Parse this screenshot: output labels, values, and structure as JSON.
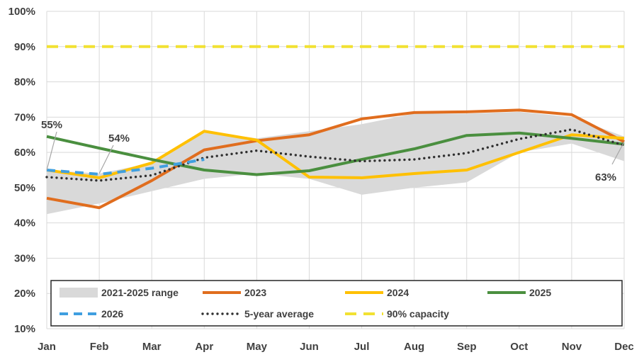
{
  "chart_data": {
    "type": "line",
    "title": "",
    "xlabel": "",
    "ylabel": "",
    "categories": [
      "Jan",
      "Feb",
      "Mar",
      "Apr",
      "May",
      "Jun",
      "Jul",
      "Aug",
      "Sep",
      "Oct",
      "Nov",
      "Dec"
    ],
    "ylim": [
      10,
      100
    ],
    "yticks": [
      10,
      20,
      30,
      40,
      50,
      60,
      70,
      80,
      90,
      100
    ],
    "ytick_labels": [
      "10%",
      "20%",
      "30%",
      "40%",
      "50%",
      "60%",
      "70%",
      "80%",
      "90%",
      "100%"
    ],
    "grid": true,
    "legend_position": "bottom",
    "range": {
      "name": "2021-2025 range",
      "color": "#d9d9d9",
      "min": [
        42.5,
        45.5,
        49,
        52.5,
        54,
        52.5,
        48,
        50,
        51.5,
        60,
        62.5,
        57.5
      ],
      "max": [
        55,
        54,
        57,
        66,
        64,
        66,
        68,
        71,
        71,
        71.5,
        70,
        64.5
      ]
    },
    "series": [
      {
        "name": "2023",
        "color": "#e06d1e",
        "style": "solid",
        "values": [
          47,
          44.3,
          52,
          60.7,
          63.3,
          65,
          69.5,
          71.3,
          71.5,
          72,
          70.7,
          63
        ]
      },
      {
        "name": "2024",
        "color": "#ffc000",
        "style": "solid",
        "values": [
          55,
          52.8,
          57,
          66,
          63.5,
          53,
          52.8,
          54,
          55,
          60,
          65,
          64
        ]
      },
      {
        "name": "2025",
        "color": "#4a8f3f",
        "style": "solid",
        "values": [
          64.5,
          61.2,
          58,
          55,
          53.7,
          54.8,
          58,
          61,
          64.8,
          65.5,
          64,
          62.3
        ]
      },
      {
        "name": "2026",
        "color": "#3f9fe0",
        "style": "dashed",
        "values": [
          55,
          53.8,
          55.5,
          58,
          null,
          null,
          null,
          null,
          null,
          null,
          null,
          null
        ]
      },
      {
        "name": "5-year average",
        "color": "#303030",
        "style": "dotted",
        "values": [
          53,
          52,
          53.5,
          58.5,
          60.5,
          58.8,
          57.5,
          58,
          59.8,
          63.8,
          66.5,
          62
        ]
      },
      {
        "name": "90% capacity",
        "color": "#f2e132",
        "style": "dashed",
        "values": [
          90,
          90,
          90,
          90,
          90,
          90,
          90,
          90,
          90,
          90,
          90,
          90
        ]
      }
    ],
    "annotations": [
      {
        "label": "55%",
        "category": "Jan",
        "value": 55
      },
      {
        "label": "54%",
        "category": "Feb",
        "value": 54
      },
      {
        "label": "63%",
        "category": "Dec",
        "value": 63
      }
    ],
    "legend_entries": [
      "2021-2025 range",
      "2023",
      "2024",
      "2025",
      "2026",
      "5-year average",
      "90% capacity"
    ]
  }
}
